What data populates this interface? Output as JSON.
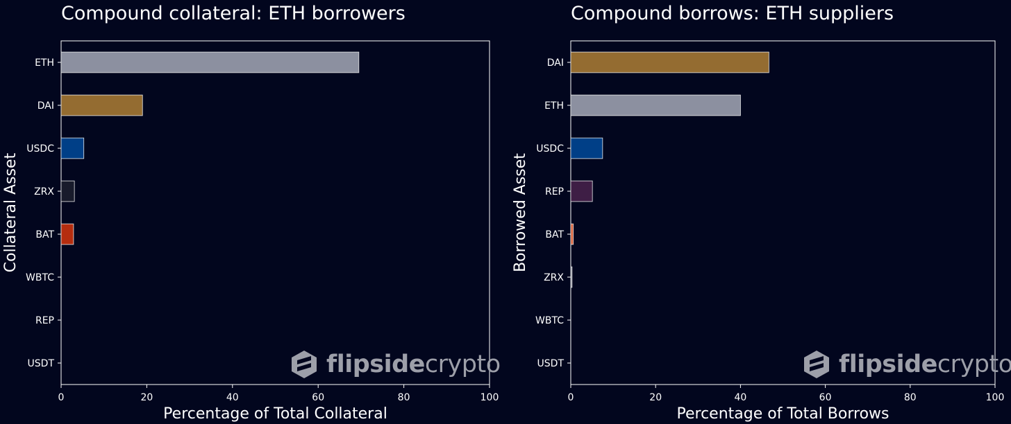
{
  "chart_data": [
    {
      "type": "bar",
      "orientation": "horizontal",
      "title": "Compound collateral: ETH borrowers",
      "xlabel": "Percentage of Total Collateral",
      "ylabel": "Collateral Asset",
      "xlim": [
        0,
        100
      ],
      "xticks": [
        "0",
        "20",
        "40",
        "60",
        "80",
        "100"
      ],
      "categories": [
        "ETH",
        "DAI",
        "USDC",
        "ZRX",
        "BAT",
        "WBTC",
        "REP",
        "USDT"
      ],
      "values": [
        69.5,
        19,
        5.3,
        3.1,
        2.9,
        0,
        0,
        0
      ],
      "colors": [
        "#8c90a0",
        "#946c31",
        "#003f87",
        "#181b2b",
        "#b52d0f",
        "#02061e",
        "#02061e",
        "#02061e"
      ],
      "grid": false
    },
    {
      "type": "bar",
      "orientation": "horizontal",
      "title": "Compound borrows: ETH suppliers",
      "xlabel": "Percentage of Total Borrows",
      "ylabel": "Borrowed Asset",
      "xlim": [
        0,
        100
      ],
      "xticks": [
        "0",
        "20",
        "40",
        "60",
        "80",
        "100"
      ],
      "categories": [
        "DAI",
        "ETH",
        "USDC",
        "REP",
        "BAT",
        "ZRX",
        "WBTC",
        "USDT"
      ],
      "values": [
        46.7,
        40,
        7.5,
        5.1,
        0.6,
        0.3,
        0,
        0
      ],
      "colors": [
        "#946c31",
        "#8c90a0",
        "#003f87",
        "#3e1e45",
        "#d8633e",
        "#8c90a0",
        "#02061e",
        "#02061e"
      ],
      "grid": false
    }
  ],
  "watermark": {
    "bold": "flipside",
    "light": "crypto"
  }
}
